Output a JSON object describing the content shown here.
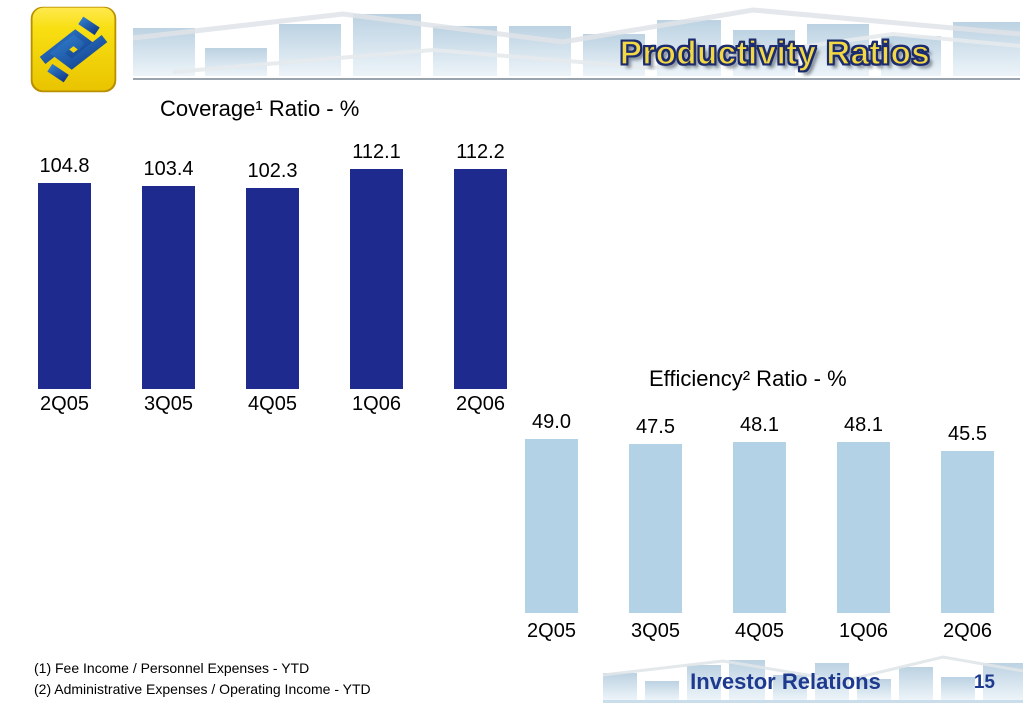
{
  "slide": {
    "title": "Productivity Ratios",
    "footer": {
      "label": "Investor Relations",
      "page_number": "15"
    },
    "footnotes": [
      "(1) Fee Income / Personnel Expenses - YTD",
      "(2) Administrative Expenses / Operating Income - YTD"
    ],
    "logo": "banco-do-brasil-logo"
  },
  "colors": {
    "coverage_bar": "#1f2a8e",
    "efficiency_bar": "#b4d2e5",
    "title_yellow": "#f2d844",
    "title_outline": "#1c2b6e",
    "footer_text": "#1d3a8f",
    "banner_bar_top": "#bcd2e2",
    "banner_bar_bottom": "#edf4f9"
  },
  "chart_data": [
    {
      "type": "bar",
      "title": "Coverage¹ Ratio - %",
      "categories": [
        "2Q05",
        "3Q05",
        "4Q05",
        "1Q06",
        "2Q06"
      ],
      "values": [
        104.8,
        103.4,
        102.3,
        112.1,
        112.2
      ],
      "labels": [
        "104.8",
        "103.4",
        "102.3",
        "112.1",
        "112.2"
      ],
      "bar_color": "#1f2a8e",
      "ylim": [
        0,
        120
      ],
      "grid": false,
      "axes_hidden": true,
      "data_labels": "above bars",
      "legend": "none"
    },
    {
      "type": "bar",
      "title": "Efficiency² Ratio - %",
      "categories": [
        "2Q05",
        "3Q05",
        "4Q05",
        "1Q06",
        "2Q06"
      ],
      "values": [
        49.0,
        47.5,
        48.1,
        48.1,
        45.5
      ],
      "labels": [
        "49.0",
        "47.5",
        "48.1",
        "48.1",
        "45.5"
      ],
      "bar_color": "#b4d2e5",
      "ylim": [
        0,
        55
      ],
      "grid": false,
      "axes_hidden": true,
      "data_labels": "above bars",
      "legend": "none"
    }
  ]
}
